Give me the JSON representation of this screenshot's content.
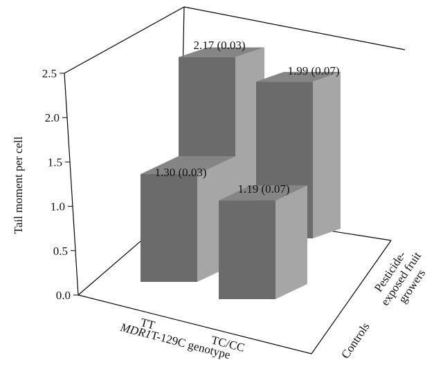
{
  "chart_data": {
    "type": "bar",
    "subtype": "3d-grouped",
    "title": "",
    "ylabel": "Tail moment per cell",
    "xlabel_prefix": "MDR1",
    "xlabel_suffix": "T-129C genotype",
    "ylim": [
      0,
      2.5
    ],
    "yticks": [
      "0.0",
      "0.5",
      "1.0",
      "1.5",
      "2.0",
      "2.5"
    ],
    "categories": [
      "TT",
      "TC/CC"
    ],
    "depth_categories": [
      {
        "lines": [
          "Controls"
        ]
      },
      {
        "lines": [
          "Pesticide-",
          "exposed fruit",
          "growers"
        ]
      }
    ],
    "series": [
      {
        "name": "Controls",
        "values": [
          1.3,
          1.19
        ],
        "labels": [
          "1.30 (0.03)",
          "1.19 (0.07)"
        ]
      },
      {
        "name": "Pesticide-exposed fruit growers",
        "values": [
          2.17,
          1.99
        ],
        "labels": [
          "2.17 (0.03)",
          "1.99 (0.07)"
        ]
      }
    ],
    "colors": {
      "front": "#6b6b6b",
      "side": "#a6a6a6",
      "top": "#858585"
    },
    "grid": false
  }
}
